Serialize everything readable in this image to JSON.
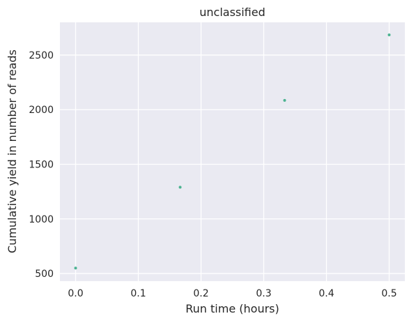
{
  "chart_data": {
    "type": "scatter",
    "title": "unclassified",
    "xlabel": "Run time (hours)",
    "ylabel": "Cumulative yield in number of reads",
    "xlim": [
      -0.025,
      0.525
    ],
    "ylim": [
      430,
      2800
    ],
    "xticks": [
      0.0,
      0.1,
      0.2,
      0.3,
      0.4,
      0.5
    ],
    "xtick_labels": [
      "0.0",
      "0.1",
      "0.2",
      "0.3",
      "0.4",
      "0.5"
    ],
    "yticks": [
      500,
      1000,
      1500,
      2000,
      2500
    ],
    "ytick_labels": [
      "500",
      "1000",
      "1500",
      "2000",
      "2500"
    ],
    "grid": true,
    "series": [
      {
        "color": "#4cb391",
        "points": [
          {
            "x": 0.0,
            "y": 550
          },
          {
            "x": 0.1667,
            "y": 1290
          },
          {
            "x": 0.3333,
            "y": 2085
          },
          {
            "x": 0.5,
            "y": 2685
          }
        ]
      }
    ],
    "background_color": "#eaeaf2",
    "grid_color": "#ffffff"
  }
}
